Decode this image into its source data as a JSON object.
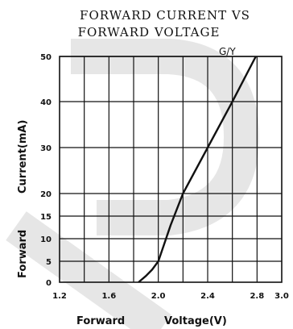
{
  "chart_data": {
    "type": "line",
    "title_lines": [
      "FORWARD  CURRENT  VS",
      "FORWARD  VOLTAGE"
    ],
    "xlabel_parts": [
      "Forward",
      "Voltage(V)"
    ],
    "ylabel_parts": [
      "Forward",
      "Current(mA)"
    ],
    "xlim": [
      1.2,
      3.0
    ],
    "x_ticks": [
      1.2,
      1.6,
      2.0,
      2.4,
      2.8,
      3.0
    ],
    "x_tick_labels": [
      "1.2",
      "1.6",
      "2.0",
      "2.4",
      "2.8",
      "3.0"
    ],
    "y_ticks": [
      0,
      5,
      10,
      15,
      20,
      30,
      40,
      50
    ],
    "y_tick_labels": [
      "0",
      "5",
      "10",
      "15",
      "20",
      "30",
      "40",
      "50"
    ],
    "y_grid_lines": [
      5,
      10,
      15,
      20,
      30,
      40,
      50
    ],
    "x_grid_step": 0.2,
    "y_scale_note": "non-uniform: 0-20 compressed differently",
    "grid": true,
    "series": [
      {
        "name": "G/Y",
        "x": [
          1.84,
          1.9,
          1.95,
          2.0,
          2.1,
          2.2,
          2.4,
          2.6,
          2.79
        ],
        "y": [
          0,
          1.5,
          3,
          5,
          13,
          20,
          30,
          40,
          50
        ]
      }
    ]
  }
}
